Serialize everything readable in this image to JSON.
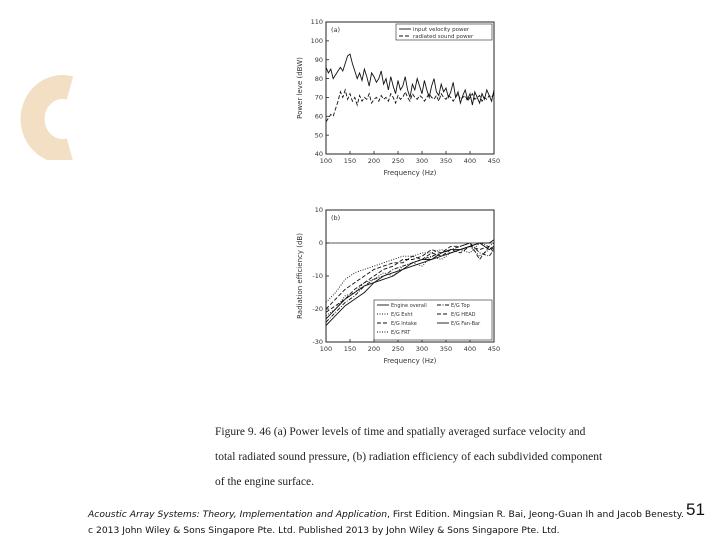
{
  "colors": {
    "accent": "#f3dfc4"
  },
  "chart_data": [
    {
      "type": "line",
      "panel_label": "(a)",
      "xlabel": "Frequency (Hz)",
      "ylabel": "Power leve (dBW)",
      "xlim": [
        100,
        450
      ],
      "ylim": [
        40,
        110
      ],
      "xticks": [
        "100",
        "150",
        "200",
        "250",
        "300",
        "350",
        "400",
        "450"
      ],
      "yticks": [
        "40",
        "50",
        "60",
        "70",
        "80",
        "90",
        "100",
        "110"
      ],
      "legend": "top-right",
      "series": [
        {
          "name": "input velocity power",
          "style": "solid",
          "x": [
            100,
            105,
            110,
            115,
            120,
            125,
            130,
            135,
            140,
            145,
            150,
            155,
            160,
            165,
            170,
            175,
            180,
            185,
            190,
            195,
            200,
            205,
            210,
            215,
            220,
            225,
            230,
            235,
            240,
            245,
            250,
            255,
            260,
            265,
            270,
            275,
            280,
            285,
            290,
            295,
            300,
            305,
            310,
            315,
            320,
            325,
            330,
            335,
            340,
            345,
            350,
            355,
            360,
            365,
            370,
            375,
            380,
            385,
            390,
            395,
            400,
            405,
            410,
            415,
            420,
            425,
            430,
            435,
            440,
            445,
            450
          ],
          "y": [
            86,
            83,
            85,
            80,
            82,
            84,
            86,
            84,
            88,
            92,
            93,
            88,
            84,
            80,
            83,
            79,
            85,
            81,
            76,
            83,
            81,
            78,
            80,
            84,
            77,
            80,
            74,
            81,
            76,
            72,
            79,
            74,
            76,
            81,
            74,
            70,
            77,
            74,
            80,
            76,
            72,
            79,
            74,
            70,
            76,
            80,
            73,
            71,
            77,
            73,
            75,
            70,
            73,
            78,
            70,
            73,
            67,
            71,
            74,
            69,
            72,
            66,
            73,
            70,
            67,
            72,
            69,
            74,
            71,
            68,
            74
          ]
        },
        {
          "name": "radiated sound power",
          "style": "dashed",
          "x": [
            100,
            105,
            110,
            115,
            120,
            125,
            130,
            135,
            140,
            145,
            150,
            155,
            160,
            165,
            170,
            175,
            180,
            185,
            190,
            195,
            200,
            205,
            210,
            215,
            220,
            225,
            230,
            235,
            240,
            245,
            250,
            255,
            260,
            265,
            270,
            275,
            280,
            285,
            290,
            295,
            300,
            305,
            310,
            315,
            320,
            325,
            330,
            335,
            340,
            345,
            350,
            355,
            360,
            365,
            370,
            375,
            380,
            385,
            390,
            395,
            400,
            405,
            410,
            415,
            420,
            425,
            430,
            435,
            440,
            445,
            450
          ],
          "y": [
            57,
            59,
            61,
            60,
            64,
            68,
            73,
            70,
            74,
            69,
            72,
            68,
            70,
            66,
            71,
            68,
            70,
            69,
            72,
            67,
            69,
            70,
            68,
            71,
            69,
            70,
            68,
            72,
            70,
            67,
            71,
            69,
            70,
            73,
            70,
            68,
            72,
            70,
            69,
            71,
            70,
            68,
            70,
            72,
            70,
            69,
            71,
            68,
            72,
            70,
            69,
            71,
            70,
            68,
            70,
            72,
            69,
            70,
            71,
            68,
            70,
            72,
            69,
            70,
            71,
            68,
            70,
            69,
            71,
            70,
            72
          ]
        }
      ]
    },
    {
      "type": "line",
      "panel_label": "(b)",
      "xlabel": "Frequency (Hz)",
      "ylabel": "Radiation efficiency (dB)",
      "xlim": [
        100,
        450
      ],
      "ylim": [
        -30,
        10
      ],
      "xticks": [
        "100",
        "150",
        "200",
        "250",
        "300",
        "350",
        "400",
        "450"
      ],
      "yticks": [
        "-30",
        "-20",
        "-10",
        "0",
        "10"
      ],
      "legend": "bottom-right",
      "series": [
        {
          "name": "Engine overall",
          "style": "solid",
          "x": [
            100,
            120,
            140,
            160,
            180,
            200,
            220,
            240,
            260,
            280,
            300,
            320,
            340,
            360,
            380,
            400,
            420,
            440,
            450
          ],
          "y": [
            -25,
            -22,
            -19,
            -17,
            -15,
            -12,
            -11,
            -10,
            -8,
            -7,
            -6,
            -5,
            -4,
            -3,
            -2,
            -1,
            0,
            0,
            1
          ]
        },
        {
          "name": "E/G Exht",
          "style": "dotted",
          "x": [
            100,
            120,
            140,
            160,
            180,
            200,
            220,
            240,
            260,
            280,
            300,
            320,
            340,
            360,
            380,
            400,
            420,
            440,
            450
          ],
          "y": [
            -22,
            -20,
            -16,
            -15,
            -12,
            -11,
            -9,
            -10,
            -7,
            -6,
            -7,
            -4,
            -5,
            -3,
            -2,
            -3,
            0,
            -1,
            0
          ]
        },
        {
          "name": "E/G Intake",
          "style": "dashed",
          "x": [
            100,
            120,
            140,
            160,
            180,
            200,
            220,
            240,
            260,
            280,
            300,
            320,
            340,
            360,
            380,
            400,
            420,
            440,
            450
          ],
          "y": [
            -20,
            -17,
            -14,
            -12,
            -10,
            -8,
            -7,
            -6,
            -6,
            -4,
            -5,
            -3,
            -4,
            -2,
            -3,
            -1,
            -2,
            -1,
            -2
          ]
        },
        {
          "name": "E/G FRT",
          "style": "dotted",
          "x": [
            100,
            120,
            140,
            160,
            180,
            200,
            220,
            240,
            260,
            280,
            300,
            320,
            340,
            360,
            380,
            400,
            420,
            440,
            450
          ],
          "y": [
            -18,
            -15,
            -11,
            -9,
            -8,
            -7,
            -6,
            -5,
            -4,
            -4,
            -3,
            -3,
            -2,
            -3,
            -2,
            -1,
            -4,
            -2,
            -1
          ]
        },
        {
          "name": "E/G Top",
          "style": "dashdot",
          "x": [
            100,
            120,
            140,
            160,
            180,
            200,
            220,
            240,
            260,
            280,
            300,
            320,
            340,
            360,
            380,
            400,
            420,
            440,
            450
          ],
          "y": [
            -24,
            -21,
            -18,
            -16,
            -13,
            -11,
            -10,
            -8,
            -7,
            -6,
            -5,
            -4,
            -3,
            -2,
            -1,
            0,
            -3,
            -4,
            -2
          ]
        },
        {
          "name": "E/G HEAD",
          "style": "dashed",
          "x": [
            100,
            120,
            140,
            160,
            180,
            200,
            220,
            240,
            260,
            280,
            300,
            320,
            340,
            360,
            380,
            400,
            420,
            440,
            450
          ],
          "y": [
            -21,
            -19,
            -17,
            -14,
            -12,
            -10,
            -8,
            -7,
            -5,
            -5,
            -4,
            -2,
            -3,
            -1,
            -1,
            0,
            -5,
            -1,
            -3
          ]
        },
        {
          "name": "E/G Fan-Bar",
          "style": "solid",
          "x": [
            100,
            120,
            140,
            160,
            180,
            200,
            220,
            240,
            260,
            280,
            300,
            320,
            340,
            360,
            380,
            400,
            420,
            440,
            450
          ],
          "y": [
            -23,
            -20,
            -17,
            -15,
            -13,
            -12,
            -10,
            -9,
            -8,
            -6,
            -5,
            -5,
            -3,
            -2,
            -2,
            -1,
            0,
            -2,
            -1
          ]
        }
      ]
    }
  ],
  "caption": {
    "line1": "Figure 9. 46 (a) Power levels of time  and spatially averaged surface velocity and",
    "line2": "total radiated sound pressure, (b) radiation efficiency of each subdivided component",
    "line3": "of the engine surface."
  },
  "footer": {
    "book_title": "Acoustic Array Systems: Theory, Implementation and Application",
    "citation_rest": ", First Edition. Mingsian R. Bai, Jeong-Guan Ih and Jacob Benesty.",
    "copyright": "c 2013 John Wiley & Sons Singapore Pte. Ltd. Published 2013 by John Wiley & Sons Singapore Pte. Ltd."
  },
  "slide_number": "51"
}
